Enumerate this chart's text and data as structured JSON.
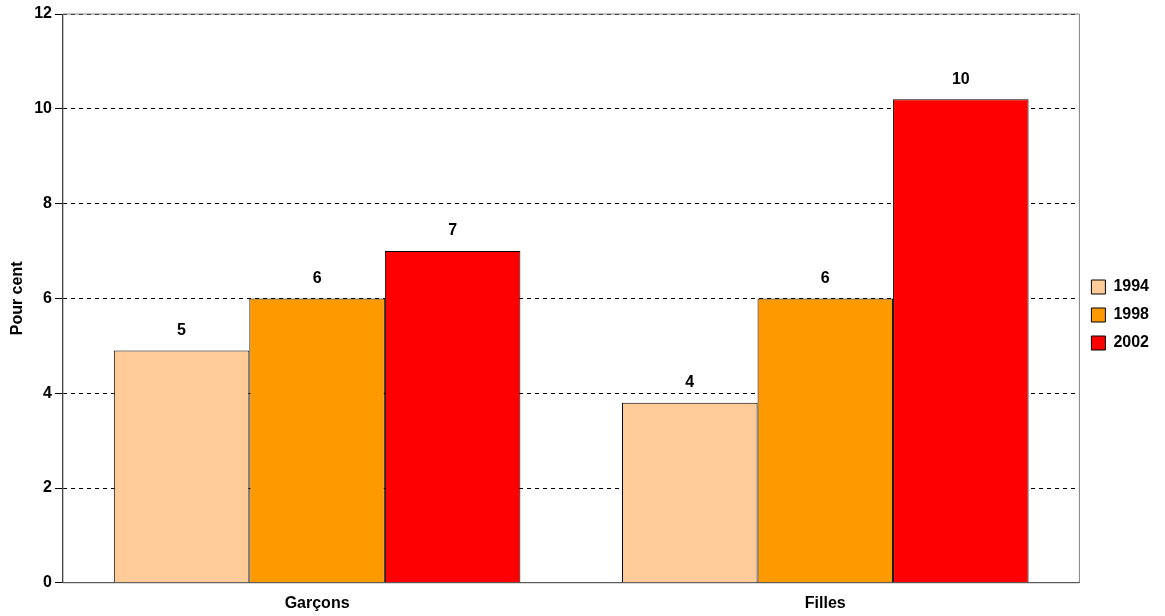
{
  "chart_data": {
    "type": "bar",
    "ylabel": "Pour cent",
    "categories": [
      "Garçons",
      "Filles"
    ],
    "series": [
      {
        "name": "1994",
        "color": "#ffcc99",
        "values": [
          4.9,
          3.8
        ],
        "value_labels": [
          "5",
          "4"
        ]
      },
      {
        "name": "1998",
        "color": "#ff9900",
        "values": [
          6.0,
          6.0
        ],
        "value_labels": [
          "6",
          "6"
        ]
      },
      {
        "name": "2002",
        "color": "#ff0000",
        "values": [
          7.0,
          10.2
        ],
        "value_labels": [
          "7",
          "10"
        ]
      }
    ],
    "ylim": [
      0,
      12
    ],
    "yticks": [
      0,
      2,
      4,
      6,
      8,
      10,
      12
    ],
    "grid": "y",
    "legend": "right"
  }
}
